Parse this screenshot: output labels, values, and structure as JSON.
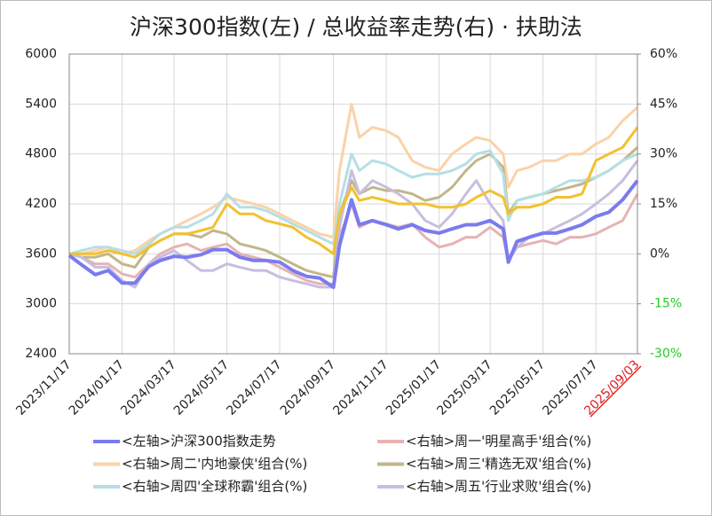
{
  "chart_data": {
    "type": "line",
    "title": "沪深300指数(左)  /  总收益率走势(右) · 扶助法",
    "x": [
      "2023/11/17",
      "2023/12/01",
      "2023/12/17",
      "2024/01/01",
      "2024/01/17",
      "2024/02/01",
      "2024/02/17",
      "2024/03/01",
      "2024/03/17",
      "2024/04/01",
      "2024/04/17",
      "2024/05/01",
      "2024/05/17",
      "2024/06/01",
      "2024/06/17",
      "2024/07/01",
      "2024/07/17",
      "2024/08/01",
      "2024/08/17",
      "2024/09/01",
      "2024/09/17",
      "2024/09/24",
      "2024/10/08",
      "2024/10/17",
      "2024/11/01",
      "2024/11/17",
      "2024/12/01",
      "2024/12/17",
      "2025/01/01",
      "2025/01/17",
      "2025/02/01",
      "2025/02/17",
      "2025/03/01",
      "2025/03/17",
      "2025/04/01",
      "2025/04/07",
      "2025/04/17",
      "2025/05/01",
      "2025/05/17",
      "2025/06/01",
      "2025/06/17",
      "2025/07/01",
      "2025/07/17",
      "2025/08/01",
      "2025/08/17",
      "2025/09/03"
    ],
    "xticks": [
      "2023/11/17",
      "2024/01/17",
      "2024/03/17",
      "2024/05/17",
      "2024/07/17",
      "2024/09/17",
      "2024/11/17",
      "2025/01/17",
      "2025/03/17",
      "2025/05/17",
      "2025/07/17",
      "2025/09/03"
    ],
    "ylim": [
      2400,
      6000
    ],
    "yticks": [
      2400,
      3000,
      3600,
      4200,
      4800,
      5400,
      6000
    ],
    "y2lim": [
      -30,
      60
    ],
    "y2ticks": [
      {
        "value": -30,
        "label": "-30%"
      },
      {
        "value": -15,
        "label": "-15%"
      },
      {
        "value": 0,
        "label": "0%"
      },
      {
        "value": 15,
        "label": "15%"
      },
      {
        "value": 30,
        "label": "30%"
      },
      {
        "value": 45,
        "label": "45%"
      },
      {
        "value": 60,
        "label": "60%"
      }
    ],
    "grid": true,
    "series": [
      {
        "name": "<左轴>沪深300指数走势",
        "color": "#7b7bef",
        "width": 4,
        "axis": "y",
        "values": [
          3580,
          3470,
          3350,
          3400,
          3250,
          3250,
          3450,
          3520,
          3570,
          3560,
          3590,
          3650,
          3650,
          3560,
          3520,
          3520,
          3500,
          3400,
          3330,
          3310,
          3200,
          3700,
          4250,
          3950,
          4000,
          3950,
          3900,
          3950,
          3880,
          3850,
          3900,
          3950,
          3950,
          4000,
          3900,
          3500,
          3750,
          3800,
          3850,
          3850,
          3900,
          3950,
          4050,
          4100,
          4250,
          4480
        ]
      },
      {
        "name": "<右轴>周一'明星高手'组合(%)",
        "color": "#e6b3b3",
        "width": 3,
        "axis": "y2",
        "values": [
          0,
          -1,
          -3,
          -3,
          -6,
          -7,
          -3,
          0,
          2,
          3,
          1,
          2,
          3,
          0,
          -1,
          -2,
          -4,
          -6,
          -8,
          -9,
          -9,
          5,
          15,
          8,
          10,
          9,
          8,
          9,
          5,
          2,
          3,
          5,
          5,
          8,
          5,
          -2,
          2,
          3,
          4,
          3,
          5,
          5,
          6,
          8,
          10,
          18
        ]
      },
      {
        "name": "<右轴>周二'内地豪侠'组合(%)",
        "color": "#fbd2a8",
        "width": 3,
        "axis": "y2",
        "values": [
          0,
          0,
          1,
          2,
          0,
          1,
          4,
          6,
          8,
          10,
          12,
          14,
          17,
          16,
          15,
          14,
          12,
          10,
          8,
          6,
          5,
          25,
          45,
          35,
          38,
          37,
          35,
          28,
          26,
          25,
          30,
          33,
          35,
          34,
          30,
          20,
          25,
          26,
          28,
          28,
          30,
          30,
          33,
          35,
          40,
          44
        ]
      },
      {
        "name": "<右轴>周三'精选无双'组合(%)",
        "color": "#c2b68a",
        "width": 3,
        "axis": "y2",
        "values": [
          0,
          -1,
          -1,
          0,
          -3,
          -4,
          2,
          4,
          6,
          6,
          5,
          7,
          6,
          3,
          2,
          1,
          -1,
          -3,
          -5,
          -6,
          -7,
          12,
          22,
          18,
          20,
          19,
          19,
          18,
          16,
          17,
          20,
          25,
          28,
          30,
          26,
          12,
          16,
          17,
          18,
          19,
          20,
          21,
          23,
          25,
          28,
          32
        ]
      },
      {
        "name": "<右轴>周四'全球称霸'组合(%)",
        "color": "#b5dfe5",
        "width": 3,
        "axis": "y2",
        "values": [
          0,
          1,
          2,
          2,
          1,
          0,
          3,
          6,
          8,
          8,
          10,
          12,
          18,
          14,
          14,
          13,
          11,
          9,
          7,
          5,
          3,
          15,
          30,
          25,
          28,
          27,
          25,
          23,
          24,
          24,
          25,
          27,
          30,
          31,
          24,
          10,
          16,
          17,
          18,
          20,
          22,
          22,
          23,
          25,
          28,
          30
        ]
      },
      {
        "name": "<右轴>周五'行业求败'组合(%)",
        "color": "#c7bedf",
        "width": 3,
        "axis": "y2",
        "values": [
          0,
          -1,
          -4,
          -4,
          -8,
          -10,
          -3,
          -1,
          1,
          -2,
          -5,
          -5,
          -3,
          -4,
          -5,
          -5,
          -7,
          -8,
          -9,
          -10,
          -10,
          8,
          25,
          18,
          22,
          20,
          18,
          15,
          10,
          8,
          12,
          18,
          22,
          15,
          10,
          -2,
          2,
          5,
          6,
          8,
          10,
          12,
          15,
          18,
          22,
          28
        ]
      },
      {
        "color": "#f2c12e",
        "width": 3,
        "axis": "y2",
        "values": [
          0,
          0,
          0,
          1,
          0,
          -1,
          2,
          4,
          6,
          6,
          7,
          8,
          15,
          12,
          12,
          10,
          9,
          8,
          5,
          3,
          0,
          12,
          20,
          16,
          17,
          16,
          15,
          15,
          15,
          14,
          14,
          15,
          17,
          19,
          17,
          12,
          14,
          14,
          15,
          17,
          17,
          18,
          28,
          30,
          32,
          38
        ]
      }
    ]
  }
}
